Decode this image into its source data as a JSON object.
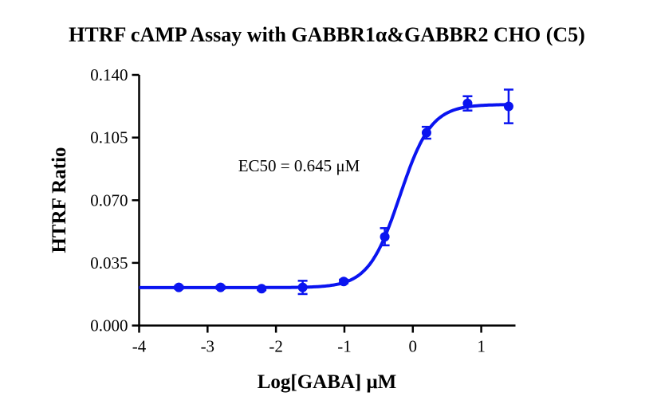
{
  "chart_data": {
    "type": "scatter",
    "title": "HTRF cAMP Assay with GABBR1α&GABBR2 CHO (C5)",
    "xlabel": "Log[GABA] μM",
    "ylabel": "HTRF Ratio",
    "xlim": [
      -4,
      1.5
    ],
    "ylim": [
      0,
      0.14
    ],
    "xticks": [
      "-4",
      "-3",
      "-2",
      "-1",
      "0",
      "1"
    ],
    "yticks": [
      "0.000",
      "0.035",
      "0.070",
      "0.105",
      "0.140"
    ],
    "grid": false,
    "color": "#0a14f0",
    "annotation": "EC50 = 0.645 μM",
    "points": [
      {
        "x": -3.42,
        "y": 0.0213,
        "err": 0.0008
      },
      {
        "x": -2.81,
        "y": 0.0213,
        "err": 0.0008
      },
      {
        "x": -2.21,
        "y": 0.0206,
        "err": 0.0008
      },
      {
        "x": -1.61,
        "y": 0.0213,
        "err": 0.0037
      },
      {
        "x": -1.01,
        "y": 0.0246,
        "err": 0.001
      },
      {
        "x": -0.41,
        "y": 0.0496,
        "err": 0.0048
      },
      {
        "x": 0.2,
        "y": 0.1077,
        "err": 0.0033
      },
      {
        "x": 0.8,
        "y": 0.1241,
        "err": 0.004
      },
      {
        "x": 1.4,
        "y": 0.1224,
        "err": 0.0094
      }
    ],
    "fit": {
      "model": "4PL",
      "bottom": 0.0212,
      "top": 0.1235,
      "logEC50": -0.19,
      "hill": 1.9
    }
  }
}
